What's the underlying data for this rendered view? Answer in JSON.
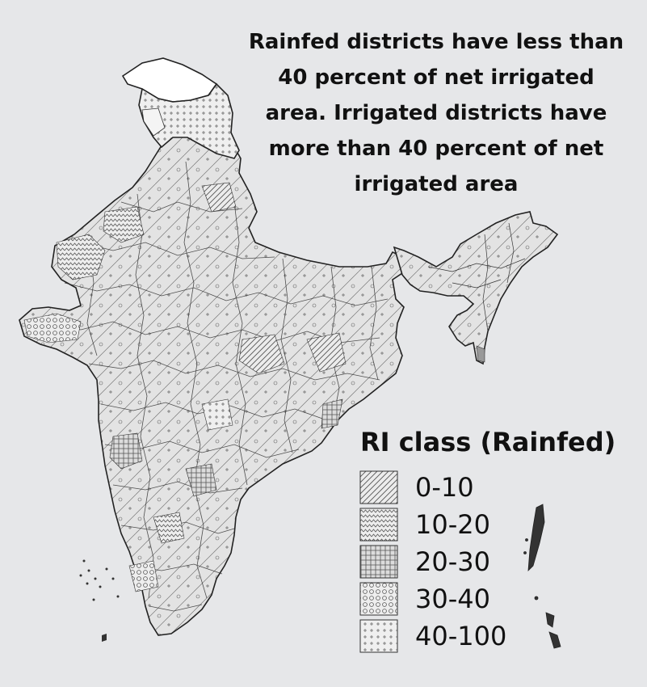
{
  "headline": {
    "lines": [
      "Rainfed districts have less than",
      "40 percent of net irrigated",
      "area. Irrigated districts have",
      "more than 40 percent of net",
      "irrigated area"
    ]
  },
  "legend": {
    "title": "RI class (Rainfed)",
    "items": [
      {
        "label": "0-10",
        "pattern": "diagonal-hatch"
      },
      {
        "label": "10-20",
        "pattern": "zigzag"
      },
      {
        "label": "20-30",
        "pattern": "dense-plus-grid"
      },
      {
        "label": "30-40",
        "pattern": "circles"
      },
      {
        "label": "40-100",
        "pattern": "sparse-plus"
      }
    ]
  },
  "map": {
    "region": "India",
    "no_data_fill": "#ffffff",
    "background": "#e6e7e9",
    "border_color": "#222222"
  }
}
